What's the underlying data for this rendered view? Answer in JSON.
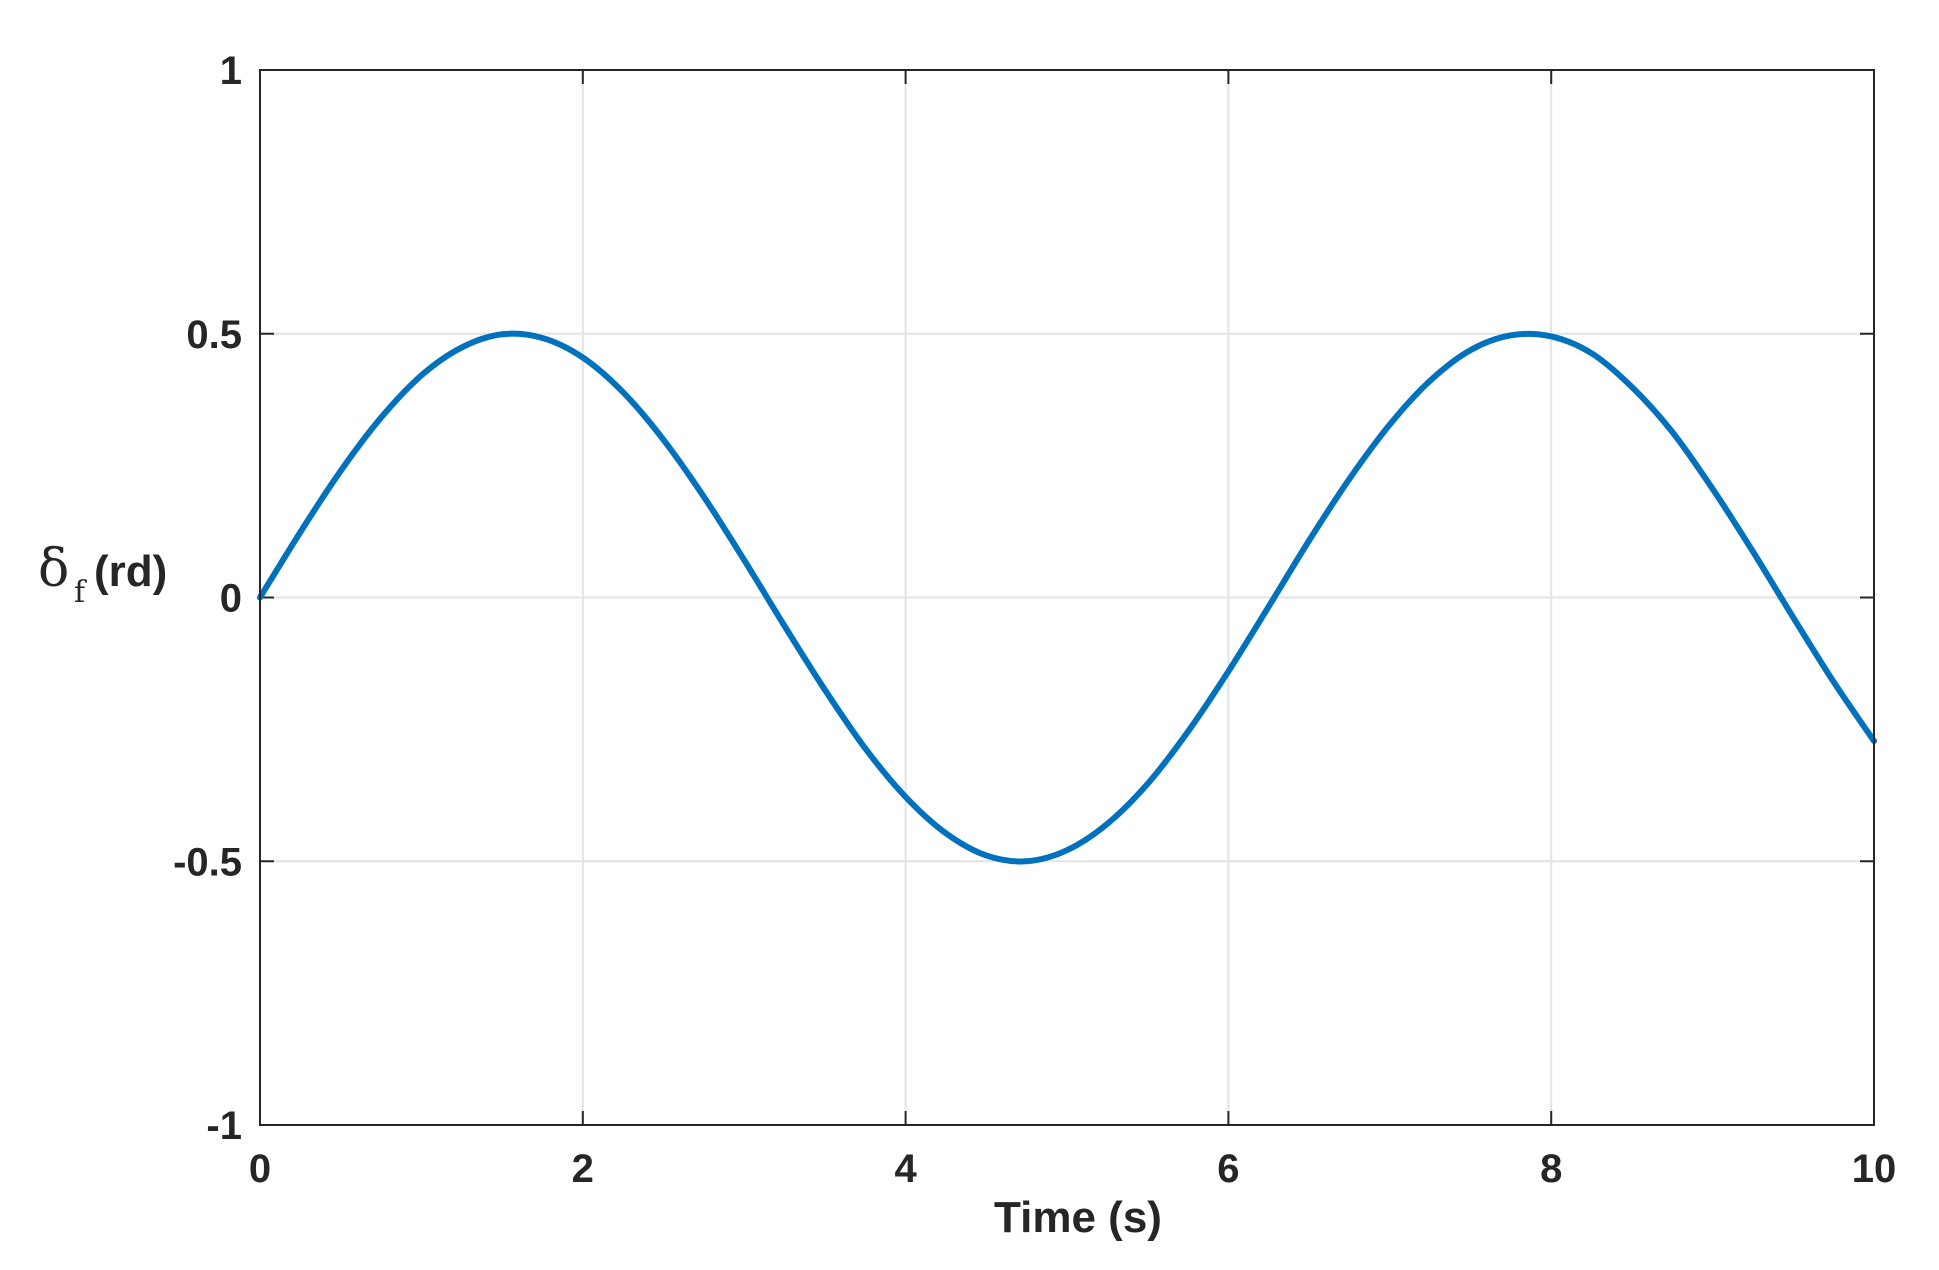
{
  "chart_data": {
    "type": "line",
    "title": "",
    "xlabel": "Time (s)",
    "ylabel": {
      "symbol": "δ",
      "subscript": "f",
      "unit": "(rd)"
    },
    "xlim": [
      0,
      10
    ],
    "ylim": [
      -1,
      1
    ],
    "xticks": [
      0,
      2,
      4,
      6,
      8,
      10
    ],
    "xtick_labels": [
      "0",
      "2",
      "4",
      "6",
      "8",
      "10"
    ],
    "yticks": [
      -1,
      -0.5,
      0,
      0.5,
      1
    ],
    "ytick_labels": [
      "-1",
      "-0.5",
      "0",
      "0.5",
      "1"
    ],
    "grid": true,
    "line_color": "#0072BD",
    "series": [
      {
        "x": [
          0,
          0.25,
          0.5,
          0.75,
          1,
          1.25,
          1.5,
          1.75,
          2,
          2.25,
          2.5,
          2.75,
          3,
          3.25,
          3.5,
          3.75,
          4,
          4.25,
          4.5,
          4.75,
          5,
          5.25,
          5.5,
          5.75,
          6,
          6.25,
          6.5,
          6.75,
          7,
          7.25,
          7.5,
          7.75,
          8,
          8.25,
          8.5,
          8.75,
          9,
          9.25,
          9.5,
          9.75,
          10
        ],
        "values": [
          0,
          0.124,
          0.24,
          0.341,
          0.421,
          0.474,
          0.499,
          0.492,
          0.455,
          0.389,
          0.299,
          0.191,
          0.071,
          -0.054,
          -0.175,
          -0.286,
          -0.378,
          -0.447,
          -0.489,
          -0.5,
          -0.479,
          -0.429,
          -0.353,
          -0.254,
          -0.14,
          -0.017,
          0.108,
          0.225,
          0.328,
          0.411,
          0.469,
          0.497,
          0.495,
          0.463,
          0.399,
          0.314,
          0.206,
          0.087,
          -0.038,
          -0.16,
          -0.272
        ]
      }
    ]
  }
}
